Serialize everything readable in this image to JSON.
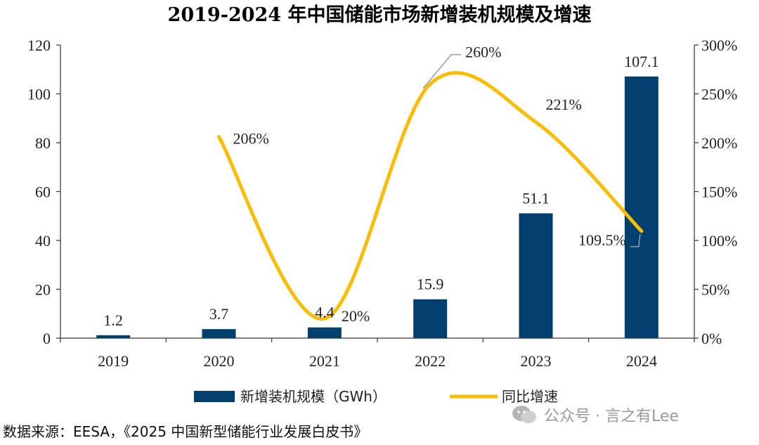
{
  "chart_data": {
    "type": "bar",
    "title": "2019-2024 年中国储能市场新增装机规模及增速",
    "categories": [
      "2019",
      "2020",
      "2021",
      "2022",
      "2023",
      "2024"
    ],
    "series": [
      {
        "name": "新增装机规模（GWh）",
        "type": "bar",
        "axis": "left",
        "values": [
          1.2,
          3.7,
          4.4,
          15.9,
          51.1,
          107.1
        ],
        "labels": [
          "1.2",
          "3.7",
          "4.4",
          "15.9",
          "51.1",
          "107.1"
        ],
        "color": "#003f6e"
      },
      {
        "name": "同比增速",
        "type": "line",
        "axis": "right",
        "values": [
          null,
          206,
          20,
          260,
          221,
          109.5
        ],
        "labels": [
          "",
          "206%",
          "20%",
          "260%",
          "221%",
          "109.5%"
        ],
        "color": "#fbbc05"
      }
    ],
    "y_left": {
      "ylim": [
        0,
        120
      ],
      "ticks": [
        "0",
        "20",
        "40",
        "60",
        "80",
        "100",
        "120"
      ]
    },
    "y_right": {
      "ylim": [
        0,
        300
      ],
      "ticks": [
        "0%",
        "50%",
        "100%",
        "150%",
        "200%",
        "250%",
        "300%"
      ]
    },
    "grid": false,
    "legend_position": "bottom"
  },
  "source": "数据来源：EESA，《2025 中国新型储能行业发展白皮书》",
  "watermark": "公众号 · 言之有Lee"
}
